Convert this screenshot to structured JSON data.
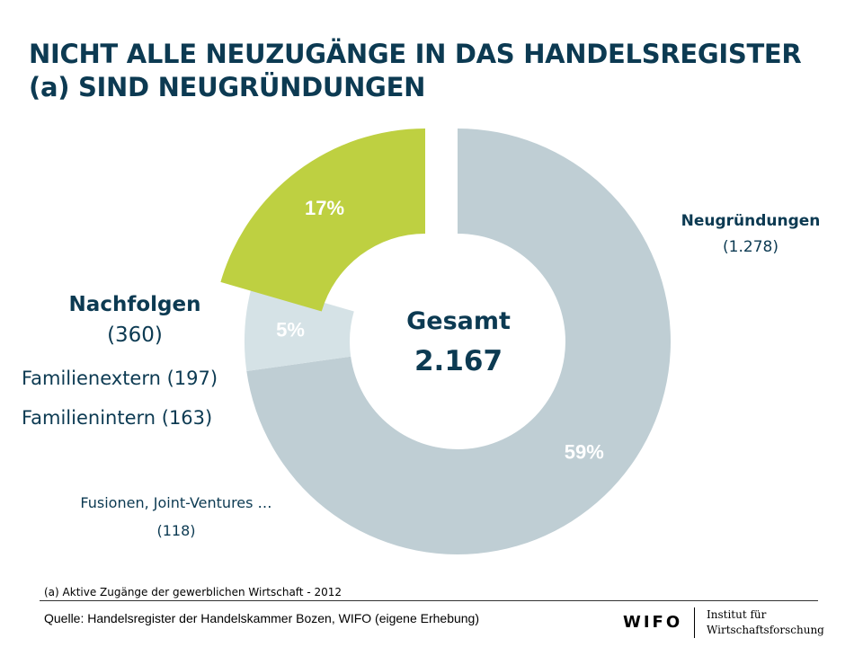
{
  "title": {
    "line1": "NICHT ALLE NEUZUGÄNGE IN DAS HANDELSREGISTER",
    "line2": "(a) SIND NEUGRÜNDUNGEN"
  },
  "chart_data": {
    "type": "pie",
    "total": {
      "label": "Gesamt",
      "value": "2.167"
    },
    "slices": [
      {
        "name": "Neugründungen",
        "count": 1278,
        "count_label": "(1.278)",
        "percent": 59,
        "percent_label": "59%",
        "color": "#bfced4"
      },
      {
        "name": "Fusionen, Joint-Ventures …",
        "count": 118,
        "count_label": "(118)",
        "percent": 5,
        "percent_label": "5%",
        "color": "#d5e2e6"
      },
      {
        "name": "Nachfolgen",
        "count": 360,
        "count_label": "(360)",
        "percent": 17,
        "percent_label": "17%",
        "color": "#bed041"
      }
    ],
    "sub_labels": {
      "familienextern": "Familienextern (197)",
      "familienintern": "Familienintern (163)"
    },
    "percent_text_color": "#ffffff",
    "label_text_color": "#0c3a52"
  },
  "footnote": "(a) Aktive Zugänge der gewerblichen Wirtschaft - 2012",
  "source": "Quelle: Handelsregister der Handelskammer Bozen, WIFO (eigene Erhebung)",
  "logo": {
    "wordmark": "WIFO",
    "line1": "Institut für",
    "line2": "Wirtschaftsforschung"
  }
}
